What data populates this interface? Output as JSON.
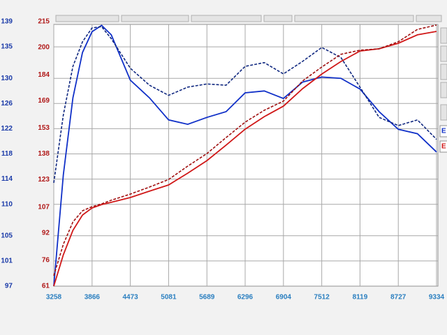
{
  "chart_data": {
    "type": "line",
    "x": [
      3258,
      3410,
      3562,
      3714,
      3866,
      4018,
      4170,
      4473,
      4777,
      5081,
      5385,
      5689,
      5993,
      6296,
      6600,
      6904,
      7208,
      7512,
      7816,
      8119,
      8423,
      8727,
      9031,
      9334
    ],
    "xlim": [
      3258,
      9334
    ],
    "xticks": [
      3258,
      3866,
      4473,
      5081,
      5689,
      6296,
      6904,
      7512,
      8119,
      8727,
      9334
    ],
    "ylim": [
      97,
      139
    ],
    "yticks": [
      97,
      101,
      105,
      110,
      114,
      118,
      122,
      126,
      130,
      135,
      139
    ],
    "y2lim": [
      61,
      215
    ],
    "y2ticks": [
      61,
      76,
      92,
      107,
      123,
      138,
      153,
      169,
      184,
      200,
      215
    ],
    "grid": true,
    "series": [
      {
        "name": "E",
        "color": "#1030c8",
        "dashed": false,
        "values": [
          97,
          114.7,
          126.9,
          134.1,
          137.4,
          138.4,
          136.9,
          129.7,
          126.9,
          123.4,
          122.7,
          123.8,
          124.7,
          127.7,
          128.0,
          126.8,
          129.4,
          130.2,
          130.0,
          128.3,
          124.7,
          121.9,
          121.2,
          118.3
        ]
      },
      {
        "color": "#102880",
        "dashed": true,
        "values": [
          113.4,
          124.2,
          131.9,
          135.8,
          138.0,
          138.2,
          136.3,
          131.6,
          128.9,
          127.3,
          128.6,
          129.1,
          128.9,
          131.9,
          132.5,
          130.7,
          132.7,
          134.9,
          133.3,
          128.6,
          123.8,
          122.5,
          123.4,
          120.3
        ]
      },
      {
        "name": "E",
        "color": "#d01818",
        "dashed": false,
        "axis": "y2",
        "values": [
          61,
          79.3,
          93.5,
          102.4,
          106.5,
          108.5,
          109.8,
          112.6,
          116.3,
          119.9,
          126.8,
          134.1,
          143.1,
          152.4,
          159.7,
          165.8,
          176.0,
          184.5,
          191.8,
          197.9,
          199.2,
          202.4,
          207.3,
          209.3
        ]
      },
      {
        "color": "#a01010",
        "dashed": true,
        "axis": "y2",
        "values": [
          67.1,
          85.4,
          98.4,
          104.9,
          107.3,
          108.9,
          111.0,
          114.6,
          118.7,
          123.1,
          130.9,
          138.2,
          147.5,
          156.5,
          163.4,
          168.7,
          180.5,
          188.6,
          196.0,
          198.4,
          199.2,
          203.3,
          210.5,
          213.0
        ]
      }
    ]
  }
}
